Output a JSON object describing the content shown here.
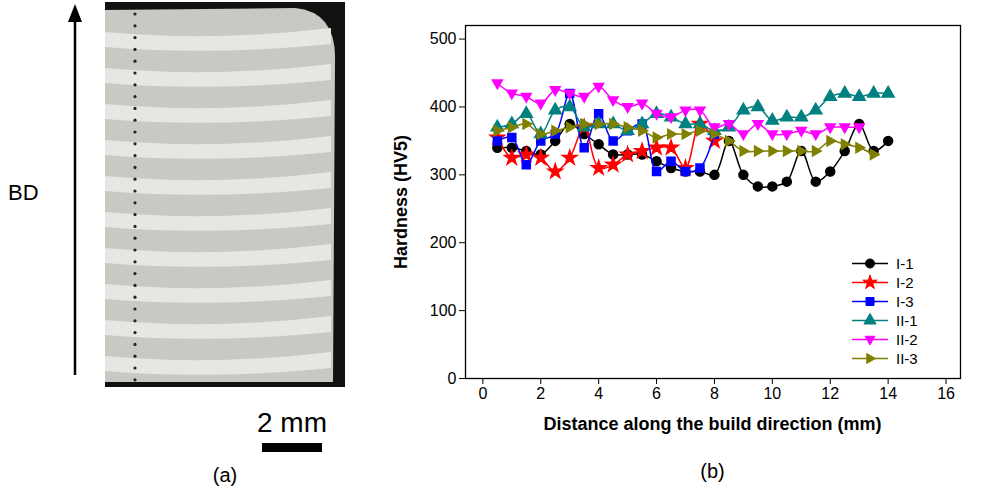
{
  "chart_data": {
    "type": "line",
    "label": "(b)",
    "xlabel": "Distance along the build direction (mm)",
    "ylabel": "Hardness (HV5)",
    "xlim": [
      -0.6,
      16.5
    ],
    "ylim": [
      0,
      520
    ],
    "xticks": [
      0,
      2,
      4,
      6,
      8,
      10,
      12,
      14,
      16
    ],
    "yticks": [
      0,
      100,
      200,
      300,
      400,
      500
    ],
    "legend": "lower right",
    "series": [
      {
        "name": "I-1",
        "color": "#000000",
        "marker": "circle",
        "x": [
          0.5,
          1,
          1.5,
          2,
          2.5,
          3,
          3.5,
          4,
          4.5,
          5,
          5.5,
          6,
          6.5,
          7,
          7.5,
          8,
          8.5,
          9,
          9.5,
          10,
          10.5,
          11,
          11.5,
          12,
          12.5,
          13,
          13.5,
          14
        ],
        "values": [
          340,
          340,
          335,
          330,
          350,
          375,
          360,
          345,
          330,
          330,
          330,
          320,
          310,
          305,
          305,
          300,
          350,
          300,
          283,
          283,
          290,
          335,
          290,
          305,
          335,
          375,
          335,
          350
        ]
      },
      {
        "name": "I-2",
        "color": "#ff0000",
        "marker": "star",
        "x": [
          0.5,
          1,
          1.5,
          2,
          2.5,
          3,
          3.5,
          4,
          4.5,
          5,
          5.5,
          6,
          6.5,
          7,
          7.5,
          8
        ],
        "values": [
          355,
          325,
          330,
          325,
          305,
          325,
          370,
          310,
          315,
          330,
          335,
          340,
          340,
          310,
          375,
          350
        ]
      },
      {
        "name": "I-3",
        "color": "#0000ff",
        "marker": "square",
        "x": [
          0.5,
          1,
          1.5,
          2,
          2.5,
          3,
          3.5,
          4,
          4.5,
          5,
          5.5,
          6,
          6.5,
          7,
          7.5,
          8
        ],
        "values": [
          350,
          355,
          315,
          350,
          360,
          420,
          340,
          390,
          350,
          365,
          375,
          305,
          320,
          305,
          310,
          360
        ]
      },
      {
        "name": "II-1",
        "color": "#008080",
        "marker": "triangle",
        "x": [
          0.5,
          1,
          1.5,
          2,
          2.5,
          3,
          3.5,
          4,
          4.5,
          5,
          5.5,
          6,
          6.5,
          7,
          7.5,
          8,
          8.5,
          9,
          9.5,
          10,
          10.5,
          11,
          11.5,
          12,
          12.5,
          13,
          13.5,
          14
        ],
        "values": [
          370,
          375,
          390,
          360,
          395,
          400,
          370,
          375,
          375,
          365,
          375,
          390,
          385,
          375,
          375,
          365,
          370,
          395,
          400,
          380,
          385,
          385,
          395,
          415,
          420,
          415,
          420,
          420
        ]
      },
      {
        "name": "II-2",
        "color": "#ff00ff",
        "marker": "triangle-down",
        "x": [
          0.5,
          1,
          1.5,
          2,
          2.5,
          3,
          3.5,
          4,
          4.5,
          5,
          5.5,
          6,
          6.5,
          7,
          7.5,
          8,
          8.5,
          9,
          9.5,
          10,
          10.5,
          11,
          11.5,
          12,
          12.5,
          13
        ],
        "values": [
          435,
          420,
          415,
          405,
          425,
          420,
          415,
          430,
          410,
          400,
          405,
          390,
          385,
          395,
          395,
          370,
          375,
          360,
          375,
          360,
          360,
          365,
          360,
          370,
          370,
          370
        ]
      },
      {
        "name": "II-3",
        "color": "#808000",
        "marker": "triangle-right",
        "x": [
          0.5,
          1,
          1.5,
          2,
          2.5,
          3,
          3.5,
          4,
          4.5,
          5,
          5.5,
          6,
          6.5,
          7,
          7.5,
          8,
          8.5,
          9,
          9.5,
          10,
          10.5,
          11,
          11.5,
          12,
          12.5,
          13,
          13.5
        ],
        "values": [
          365,
          370,
          375,
          360,
          365,
          370,
          375,
          375,
          375,
          370,
          365,
          355,
          360,
          360,
          365,
          360,
          350,
          335,
          335,
          335,
          335,
          335,
          335,
          350,
          345,
          340,
          330
        ]
      }
    ]
  },
  "image_panel": {
    "label": "(a)",
    "arrow_label": "BD",
    "scale_bar": "2 mm"
  }
}
